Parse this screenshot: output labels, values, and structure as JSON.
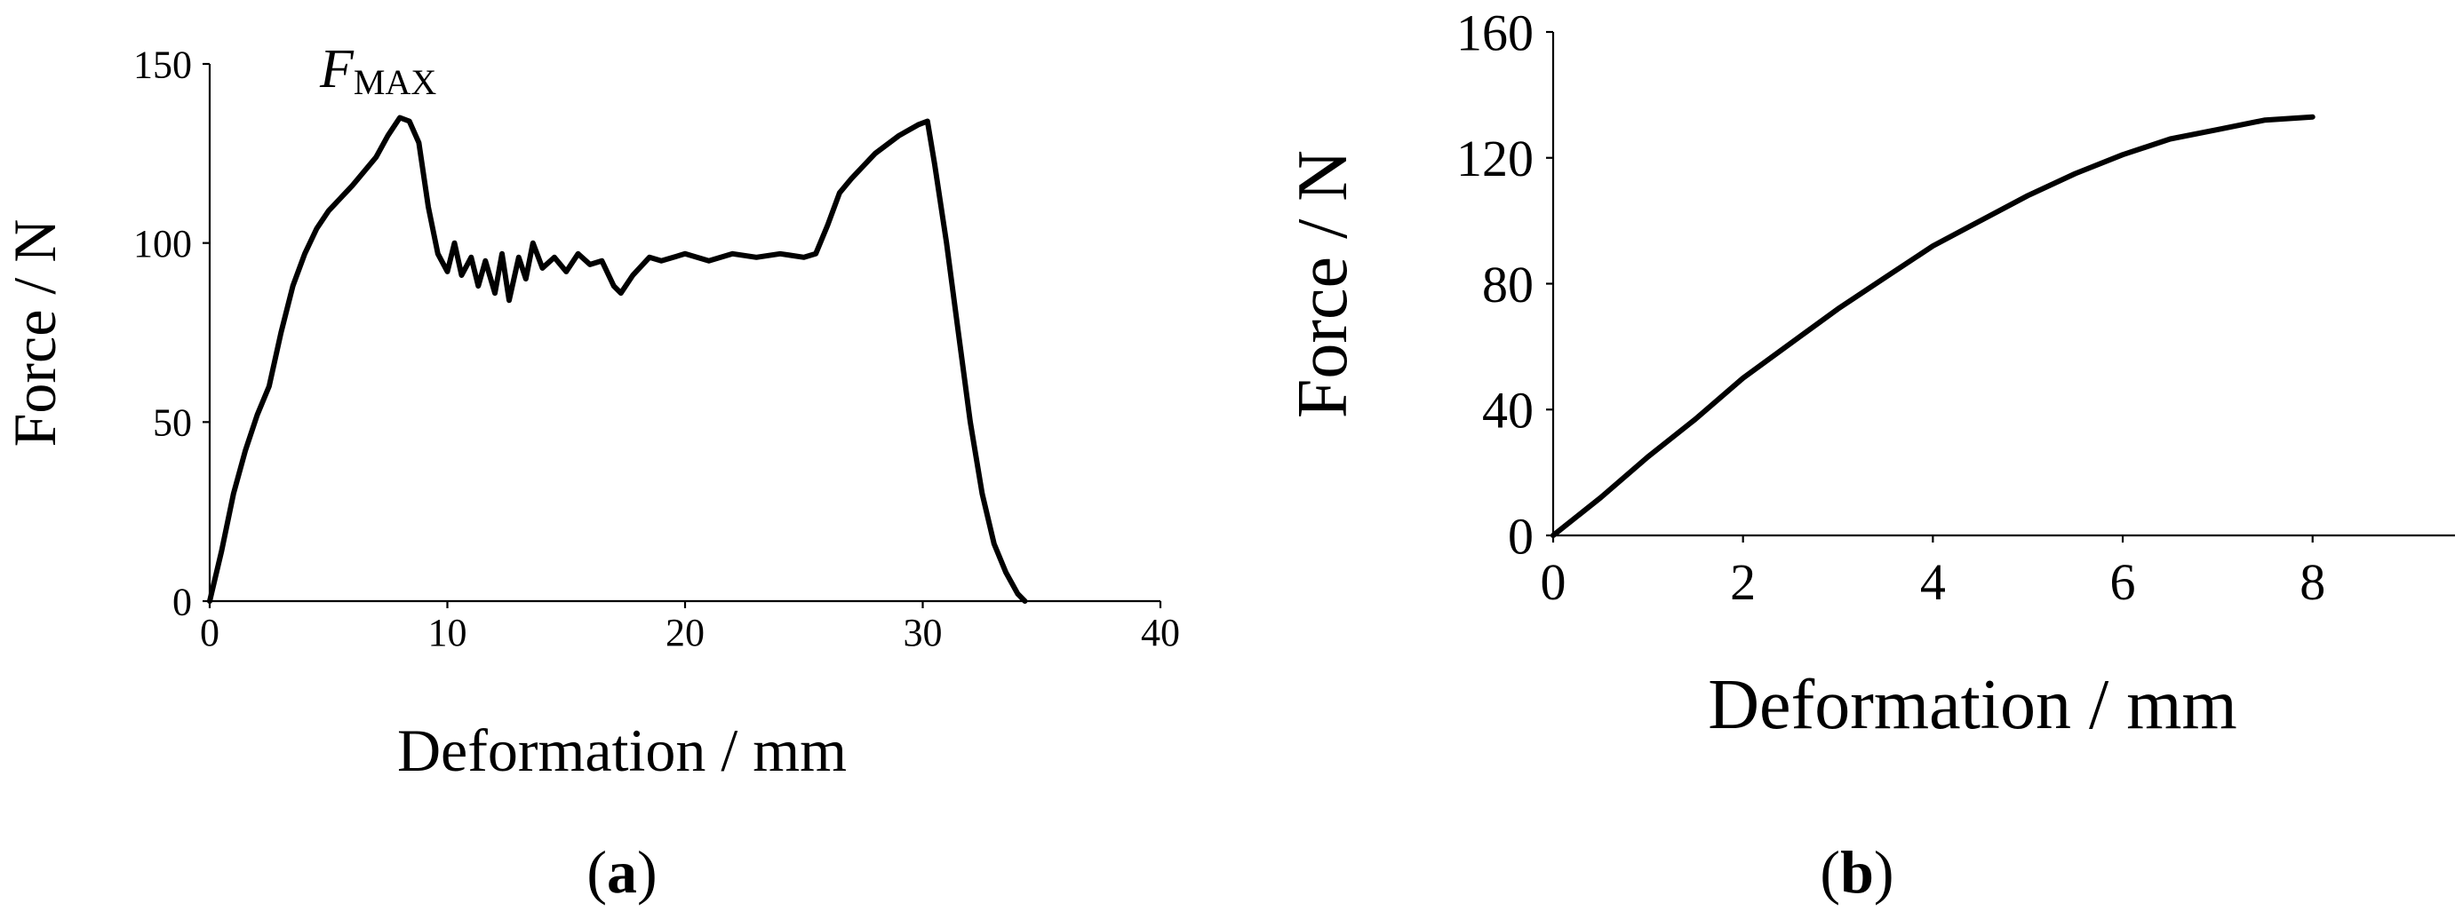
{
  "chart_data": [
    {
      "type": "line",
      "panel_label": {
        "open": "(",
        "letter": "a",
        "close": ")"
      },
      "xlabel": "Deformation / mm",
      "ylabel": "Force / N",
      "xlim": [
        0,
        40
      ],
      "ylim": [
        0,
        150
      ],
      "xticks": [
        0,
        10,
        20,
        30,
        40
      ],
      "yticks": [
        0,
        50,
        100,
        150
      ],
      "grid": false,
      "annotation": {
        "main": "F",
        "sub": "MAX",
        "x": 8,
        "y": 135
      },
      "series": [
        {
          "points": [
            [
              0,
              0
            ],
            [
              0.5,
              14
            ],
            [
              1,
              30
            ],
            [
              1.5,
              42
            ],
            [
              2,
              52
            ],
            [
              2.5,
              60
            ],
            [
              3,
              75
            ],
            [
              3.5,
              88
            ],
            [
              4,
              97
            ],
            [
              4.5,
              104
            ],
            [
              5,
              109
            ],
            [
              6,
              116
            ],
            [
              7,
              124
            ],
            [
              7.5,
              130
            ],
            [
              8,
              135
            ],
            [
              8.4,
              134
            ],
            [
              8.8,
              128
            ],
            [
              9.2,
              110
            ],
            [
              9.6,
              97
            ],
            [
              10,
              92
            ],
            [
              10.3,
              100
            ],
            [
              10.6,
              91
            ],
            [
              11,
              96
            ],
            [
              11.3,
              88
            ],
            [
              11.6,
              95
            ],
            [
              12,
              86
            ],
            [
              12.3,
              97
            ],
            [
              12.6,
              84
            ],
            [
              13,
              96
            ],
            [
              13.3,
              90
            ],
            [
              13.6,
              100
            ],
            [
              14,
              93
            ],
            [
              14.5,
              96
            ],
            [
              15,
              92
            ],
            [
              15.5,
              97
            ],
            [
              16,
              94
            ],
            [
              16.5,
              95
            ],
            [
              17,
              88
            ],
            [
              17.3,
              86
            ],
            [
              17.8,
              91
            ],
            [
              18.5,
              96
            ],
            [
              19,
              95
            ],
            [
              20,
              97
            ],
            [
              21,
              95
            ],
            [
              22,
              97
            ],
            [
              23,
              96
            ],
            [
              24,
              97
            ],
            [
              25,
              96
            ],
            [
              25.5,
              97
            ],
            [
              26,
              105
            ],
            [
              26.5,
              114
            ],
            [
              27,
              118
            ],
            [
              28,
              125
            ],
            [
              29,
              130
            ],
            [
              29.8,
              133
            ],
            [
              30.2,
              134
            ],
            [
              30.5,
              122
            ],
            [
              31,
              100
            ],
            [
              31.5,
              75
            ],
            [
              32,
              50
            ],
            [
              32.5,
              30
            ],
            [
              33,
              16
            ],
            [
              33.5,
              8
            ],
            [
              34,
              2
            ],
            [
              34.3,
              0
            ]
          ]
        }
      ]
    },
    {
      "type": "line",
      "panel_label": {
        "open": "(",
        "letter": "b",
        "close": ")"
      },
      "xlabel": "Deformation / mm",
      "ylabel": "Force / N",
      "xlim": [
        0,
        9.5
      ],
      "ylim": [
        0,
        160
      ],
      "xticks": [
        0,
        2,
        4,
        6,
        8
      ],
      "yticks": [
        0,
        40,
        80,
        120,
        160
      ],
      "grid": false,
      "series": [
        {
          "points": [
            [
              0,
              0
            ],
            [
              0.5,
              12
            ],
            [
              1,
              25
            ],
            [
              1.5,
              37
            ],
            [
              2,
              50
            ],
            [
              2.5,
              61
            ],
            [
              3,
              72
            ],
            [
              3.5,
              82
            ],
            [
              4,
              92
            ],
            [
              4.5,
              100
            ],
            [
              5,
              108
            ],
            [
              5.5,
              115
            ],
            [
              6,
              121
            ],
            [
              6.5,
              126
            ],
            [
              7,
              129
            ],
            [
              7.5,
              132
            ],
            [
              8,
              133
            ]
          ]
        }
      ]
    }
  ]
}
